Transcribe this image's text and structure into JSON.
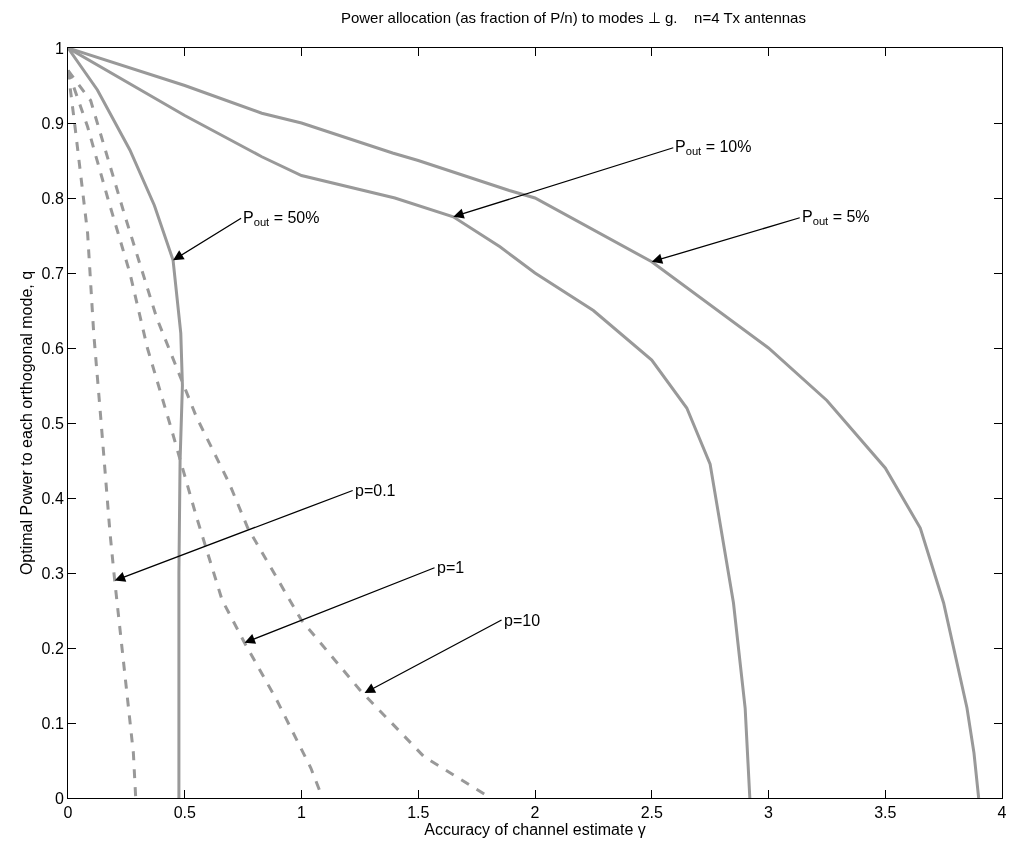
{
  "chart_data": {
    "type": "line",
    "title": "Power allocation (as fraction of P/n) to modes ⊥ g.    n=4 Tx antennas",
    "xlabel": "Accuracy of channel estimate γ",
    "ylabel": "Optimal Power to each orthogonal mode, q",
    "xlim": [
      0,
      4
    ],
    "ylim": [
      0,
      1
    ],
    "xticks": [
      0,
      0.5,
      1,
      1.5,
      2,
      2.5,
      3,
      3.5,
      4
    ],
    "yticks": [
      0,
      0.1,
      0.2,
      0.3,
      0.4,
      0.5,
      0.6,
      0.7,
      0.8,
      0.9,
      1
    ],
    "marker": "none",
    "series": [
      {
        "color": "#999999",
        "line_style": "solid",
        "x": [
          0,
          0.5,
          0.83,
          1.0,
          1.39,
          1.5,
          1.89,
          2.0,
          2.5,
          3.0,
          3.25,
          3.5,
          3.65,
          3.75,
          3.85,
          3.88,
          3.9
        ],
        "values": [
          1,
          0.95,
          0.913,
          0.9,
          0.86,
          0.85,
          0.81,
          0.8,
          0.715,
          0.6,
          0.53,
          0.44,
          0.36,
          0.26,
          0.12,
          0.06,
          0
        ]
      },
      {
        "color": "#999999",
        "line_style": "solid",
        "x": [
          0,
          0.5,
          0.83,
          1.0,
          1.4,
          1.65,
          1.85,
          2.0,
          2.25,
          2.5,
          2.65,
          2.75,
          2.85,
          2.9,
          2.92
        ],
        "values": [
          1,
          0.91,
          0.855,
          0.83,
          0.8,
          0.775,
          0.735,
          0.7,
          0.65,
          0.584,
          0.52,
          0.445,
          0.26,
          0.12,
          0
        ]
      },
      {
        "color": "#999999",
        "line_style": "solid",
        "x": [
          0,
          0.126,
          0.265,
          0.37,
          0.45,
          0.483,
          0.49,
          0.48,
          0.475,
          0.475
        ],
        "values": [
          1,
          0.944,
          0.864,
          0.79,
          0.717,
          0.62,
          0.55,
          0.45,
          0.3,
          0
        ]
      },
      {
        "color": "#999999",
        "line_style": "dashed",
        "x": [
          0,
          0.03,
          0.084,
          0.11,
          0.14,
          0.18,
          0.2,
          0.24,
          0.28,
          0.29
        ],
        "values": [
          0.97,
          0.895,
          0.753,
          0.62,
          0.508,
          0.353,
          0.29,
          0.175,
          0.06,
          0
        ]
      },
      {
        "color": "#999999",
        "line_style": "dashed",
        "x": [
          0,
          0.084,
          0.17,
          0.265,
          0.34,
          0.44,
          0.55,
          0.66,
          0.756,
          0.895,
          1.04,
          1.09
        ],
        "values": [
          0.97,
          0.895,
          0.8,
          0.7,
          0.6,
          0.495,
          0.375,
          0.264,
          0.207,
          0.13,
          0.04,
          0
        ]
      },
      {
        "color": "#999999",
        "line_style": "dashed",
        "x": [
          0,
          0.097,
          0.24,
          0.38,
          0.55,
          0.69,
          0.77,
          1.0,
          1.25,
          1.525,
          1.81
        ],
        "values": [
          0.97,
          0.93,
          0.78,
          0.64,
          0.508,
          0.42,
          0.36,
          0.237,
          0.144,
          0.055,
          0
        ]
      }
    ],
    "annotations": [
      {
        "text": "P$_{out}$ = 50%",
        "x": 0.45,
        "y": 0.717
      },
      {
        "text": "P$_{out}$ = 10%",
        "x": 1.65,
        "y": 0.775
      },
      {
        "text": "P$_{out}$ = 5%",
        "x": 2.5,
        "y": 0.715
      },
      {
        "text": "p=0.1",
        "x": 0.2,
        "y": 0.29
      },
      {
        "text": "p=1",
        "x": 0.756,
        "y": 0.207
      },
      {
        "text": "p=10",
        "x": 1.27,
        "y": 0.14
      }
    ]
  }
}
